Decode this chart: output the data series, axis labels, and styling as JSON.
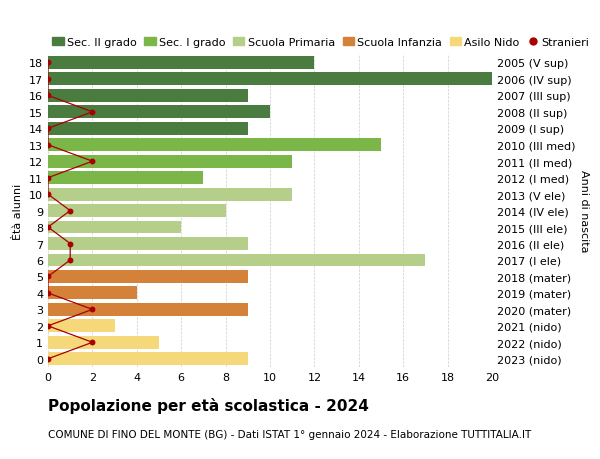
{
  "ages": [
    18,
    17,
    16,
    15,
    14,
    13,
    12,
    11,
    10,
    9,
    8,
    7,
    6,
    5,
    4,
    3,
    2,
    1,
    0
  ],
  "years": [
    "2005 (V sup)",
    "2006 (IV sup)",
    "2007 (III sup)",
    "2008 (II sup)",
    "2009 (I sup)",
    "2010 (III med)",
    "2011 (II med)",
    "2012 (I med)",
    "2013 (V ele)",
    "2014 (IV ele)",
    "2015 (III ele)",
    "2016 (II ele)",
    "2017 (I ele)",
    "2018 (mater)",
    "2019 (mater)",
    "2020 (mater)",
    "2021 (nido)",
    "2022 (nido)",
    "2023 (nido)"
  ],
  "bar_values": [
    12,
    20,
    9,
    10,
    9,
    15,
    11,
    7,
    11,
    8,
    6,
    9,
    17,
    9,
    4,
    9,
    3,
    5,
    9
  ],
  "bar_colors": [
    "#4a7c3f",
    "#4a7c3f",
    "#4a7c3f",
    "#4a7c3f",
    "#4a7c3f",
    "#7ab648",
    "#7ab648",
    "#7ab648",
    "#b5cf8a",
    "#b5cf8a",
    "#b5cf8a",
    "#b5cf8a",
    "#b5cf8a",
    "#d4813a",
    "#d4813a",
    "#d4813a",
    "#f5d87a",
    "#f5d87a",
    "#f5d87a"
  ],
  "stranieri": [
    0,
    0,
    0,
    2,
    0,
    0,
    2,
    0,
    0,
    1,
    0,
    1,
    1,
    0,
    0,
    2,
    0,
    2,
    0
  ],
  "stranieri_color": "#aa0000",
  "legend_labels": [
    "Sec. II grado",
    "Sec. I grado",
    "Scuola Primaria",
    "Scuola Infanzia",
    "Asilo Nido",
    "Stranieri"
  ],
  "legend_colors": [
    "#4a7c3f",
    "#7ab648",
    "#b5cf8a",
    "#d4813a",
    "#f5d87a",
    "#aa0000"
  ],
  "ylabel_left": "Ètà alunni",
  "ylabel_right": "Anni di nascita",
  "xlim": [
    0,
    20
  ],
  "xticks": [
    0,
    2,
    4,
    6,
    8,
    10,
    12,
    14,
    16,
    18,
    20
  ],
  "title": "Popolazione per età scolastica - 2024",
  "subtitle": "COMUNE DI FINO DEL MONTE (BG) - Dati ISTAT 1° gennaio 2024 - Elaborazione TUTTITALIA.IT",
  "title_fontsize": 11,
  "subtitle_fontsize": 7.5,
  "axis_label_fontsize": 8,
  "tick_fontsize": 8,
  "legend_fontsize": 8,
  "bg_color": "#ffffff",
  "grid_color": "#cccccc"
}
